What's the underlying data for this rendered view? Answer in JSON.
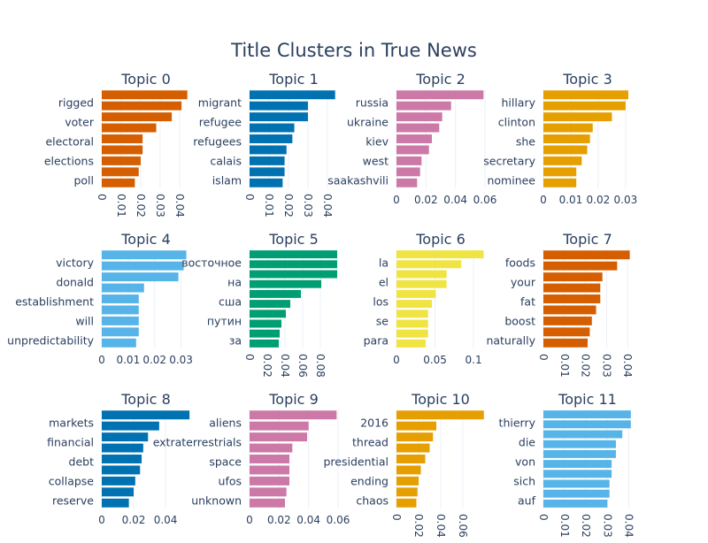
{
  "title": "Title Clusters in True News",
  "chart_data": [
    {
      "type": "bar",
      "orientation": "horizontal",
      "title": "Topic 0",
      "color": "#D55E00",
      "bars": [
        0.044,
        0.041,
        0.036,
        0.028,
        0.021,
        0.021,
        0.02,
        0.019,
        0.017
      ],
      "tick_labels": [
        "rigged",
        "voter",
        "electoral",
        "elections",
        "poll"
      ],
      "xticks": [
        0,
        0.01,
        0.02,
        0.03,
        0.04
      ],
      "xtick_labels": [
        "0",
        "0.01",
        "0.02",
        "0.03",
        "0.04"
      ],
      "xlim": [
        0,
        0.0455
      ],
      "rotated": true
    },
    {
      "type": "bar",
      "orientation": "horizontal",
      "title": "Topic 1",
      "color": "#0072B2",
      "bars": [
        0.044,
        0.03,
        0.03,
        0.023,
        0.022,
        0.019,
        0.018,
        0.018,
        0.017
      ],
      "tick_labels": [
        "migrant",
        "refugee",
        "refugees",
        "calais",
        "islam"
      ],
      "xticks": [
        0,
        0.01,
        0.02,
        0.03,
        0.04
      ],
      "xtick_labels": [
        "0",
        "0.01",
        "0.02",
        "0.03",
        "0.04"
      ],
      "xlim": [
        0,
        0.0455
      ],
      "rotated": true
    },
    {
      "type": "bar",
      "orientation": "horizontal",
      "title": "Topic 2",
      "color": "#CC79A7",
      "bars": [
        0.059,
        0.037,
        0.031,
        0.029,
        0.024,
        0.022,
        0.017,
        0.016,
        0.014
      ],
      "tick_labels": [
        "russia",
        "ukraine",
        "kiev",
        "west",
        "saakashvili"
      ],
      "xticks": [
        0,
        0.02,
        0.04,
        0.06
      ],
      "xtick_labels": [
        "0",
        "0.02",
        "0.04",
        "0.06"
      ],
      "xlim": [
        0,
        0.06
      ],
      "rotated": false
    },
    {
      "type": "bar",
      "orientation": "horizontal",
      "title": "Topic 3",
      "color": "#E69F00",
      "bars": [
        0.031,
        0.03,
        0.025,
        0.018,
        0.017,
        0.016,
        0.014,
        0.012,
        0.012
      ],
      "tick_labels": [
        "hillary",
        "clinton",
        "she",
        "secretary",
        "nominee"
      ],
      "xticks": [
        0,
        0.01,
        0.02,
        0.03
      ],
      "xtick_labels": [
        "0",
        "0.01",
        "0.02",
        "0.03"
      ],
      "xlim": [
        0,
        0.0323
      ],
      "rotated": false
    },
    {
      "type": "bar",
      "orientation": "horizontal",
      "title": "Topic 4",
      "color": "#56B4E9",
      "bars": [
        0.032,
        0.031,
        0.029,
        0.016,
        0.014,
        0.014,
        0.014,
        0.014,
        0.013
      ],
      "tick_labels": [
        "victory",
        "donald",
        "establishment",
        "will",
        "unpredictability"
      ],
      "xticks": [
        0,
        0.01,
        0.02,
        0.03
      ],
      "xtick_labels": [
        "0",
        "0.01",
        "0.02",
        "0.03"
      ],
      "xlim": [
        0,
        0.0335
      ],
      "rotated": false
    },
    {
      "type": "bar",
      "orientation": "horizontal",
      "title": "Topic 5",
      "color": "#009E73",
      "bars": [
        0.099,
        0.099,
        0.099,
        0.081,
        0.058,
        0.046,
        0.041,
        0.036,
        0.034,
        0.033
      ],
      "tick_labels": [
        "восточное",
        "на",
        "сша",
        "путин",
        "за"
      ],
      "xticks": [
        0,
        0.02,
        0.04,
        0.06,
        0.08
      ],
      "xtick_labels": [
        "0",
        "0.02",
        "0.04",
        "0.06",
        "0.08"
      ],
      "xlim": [
        0,
        0.1
      ],
      "rotated": true
    },
    {
      "type": "bar",
      "orientation": "horizontal",
      "title": "Topic 6",
      "color": "#F0E442",
      "bars": [
        0.113,
        0.084,
        0.065,
        0.065,
        0.051,
        0.046,
        0.041,
        0.041,
        0.041,
        0.038
      ],
      "tick_labels": [
        "la",
        "el",
        "los",
        "se",
        "para"
      ],
      "xticks": [
        0,
        0.05,
        0.1
      ],
      "xtick_labels": [
        "0",
        "0.05",
        "0.1"
      ],
      "xlim": [
        0,
        0.1148
      ],
      "rotated": false
    },
    {
      "type": "bar",
      "orientation": "horizontal",
      "title": "Topic 7",
      "color": "#D55E00",
      "bars": [
        0.041,
        0.035,
        0.028,
        0.027,
        0.027,
        0.025,
        0.023,
        0.022,
        0.021
      ],
      "tick_labels": [
        "foods",
        "your",
        "fat",
        "boost",
        "naturally"
      ],
      "xticks": [
        0,
        0.01,
        0.02,
        0.03,
        0.04
      ],
      "xtick_labels": [
        "0",
        "0.01",
        "0.02",
        "0.03",
        "0.04"
      ],
      "xlim": [
        0,
        0.042
      ],
      "rotated": true
    },
    {
      "type": "bar",
      "orientation": "horizontal",
      "title": "Topic 8",
      "color": "#0072B2",
      "bars": [
        0.055,
        0.036,
        0.029,
        0.026,
        0.025,
        0.024,
        0.021,
        0.02,
        0.017
      ],
      "tick_labels": [
        "markets",
        "financial",
        "debt",
        "collapse",
        "reserve"
      ],
      "xticks": [
        0,
        0.02,
        0.04
      ],
      "xtick_labels": [
        "0",
        "0.02",
        "0.04"
      ],
      "xlim": [
        0,
        0.0555
      ],
      "rotated": false
    },
    {
      "type": "bar",
      "orientation": "horizontal",
      "title": "Topic 9",
      "color": "#CC79A7",
      "bars": [
        0.059,
        0.04,
        0.039,
        0.029,
        0.027,
        0.027,
        0.027,
        0.025,
        0.024
      ],
      "tick_labels": [
        "aliens",
        "extraterrestrials",
        "space",
        "ufos",
        "unknown"
      ],
      "xticks": [
        0,
        0.02,
        0.04,
        0.06
      ],
      "xtick_labels": [
        "0",
        "0.02",
        "0.04",
        "0.06"
      ],
      "xlim": [
        0,
        0.06
      ],
      "rotated": false
    },
    {
      "type": "bar",
      "orientation": "horizontal",
      "title": "Topic 10",
      "color": "#E69F00",
      "bars": [
        0.079,
        0.036,
        0.033,
        0.03,
        0.026,
        0.022,
        0.02,
        0.019,
        0.018
      ],
      "tick_labels": [
        "2016",
        "thread",
        "presidential",
        "ending",
        "chaos"
      ],
      "xticks": [
        0,
        0.02,
        0.04,
        0.06
      ],
      "xtick_labels": [
        "0",
        "0.02",
        "0.04",
        "0.06"
      ],
      "xlim": [
        0,
        0.08
      ],
      "rotated": true
    },
    {
      "type": "bar",
      "orientation": "horizontal",
      "title": "Topic 11",
      "color": "#56B4E9",
      "bars": [
        0.041,
        0.041,
        0.037,
        0.034,
        0.034,
        0.032,
        0.032,
        0.031,
        0.031,
        0.03
      ],
      "tick_labels": [
        "thierry",
        "die",
        "von",
        "sich",
        "auf"
      ],
      "xticks": [
        0,
        0.01,
        0.02,
        0.03,
        0.04
      ],
      "xtick_labels": [
        "0",
        "0.01",
        "0.02",
        "0.03",
        "0.04"
      ],
      "xlim": [
        0,
        0.0415
      ],
      "rotated": true
    }
  ]
}
